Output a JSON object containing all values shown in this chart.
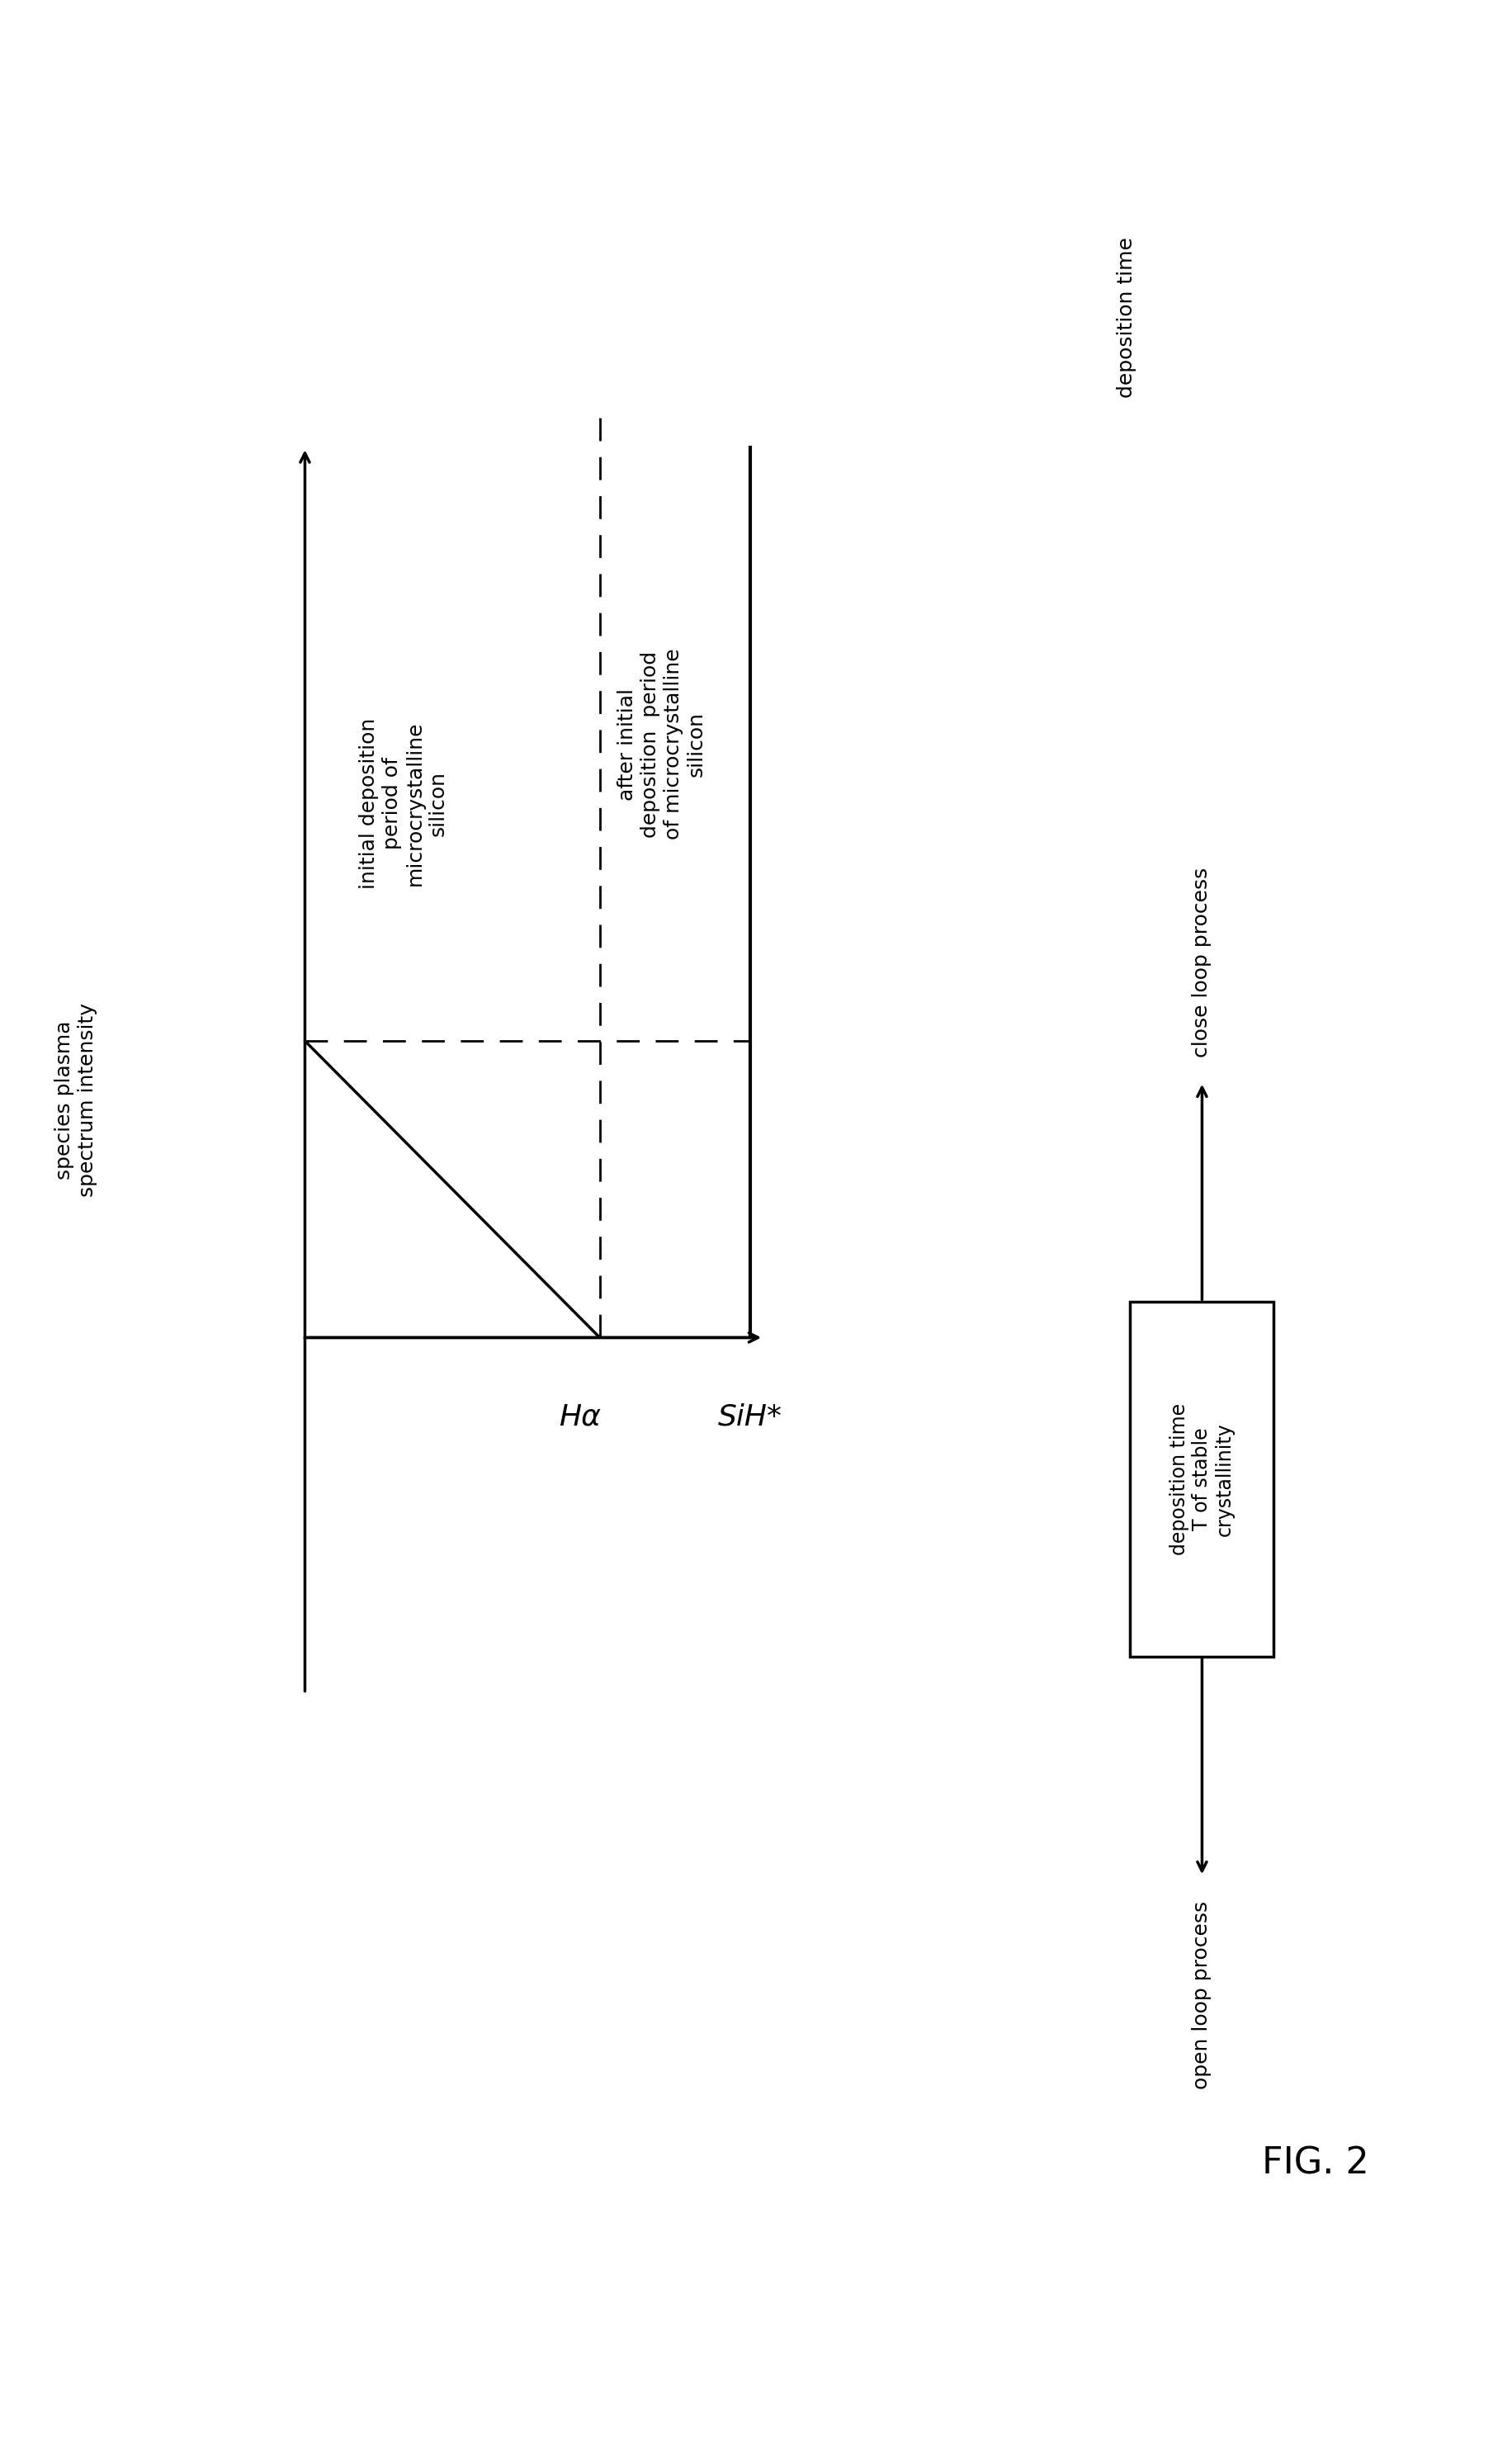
{
  "fig_width": 18.32,
  "fig_height": 29.62,
  "bg_color": "#ffffff",
  "line_color": "#000000",
  "font_size_large": 22,
  "font_size_medium": 18,
  "font_size_small": 16,
  "fig_label": "FIG. 2",
  "ylabel_text": "species plasma\nspectrum intensity",
  "xlabel_text": "deposition time",
  "label_Halpha": "Hα",
  "label_SiH": "SiH*",
  "text_initial": "initial deposition\nperiod of\nmicrocrystalline\nsilicon",
  "text_after": "after initial\ndeposition  period\nof microcrystalline\nsilicon",
  "text_box": "deposition time\nT of stable\ncrystallinity",
  "text_open_loop": "open loop process",
  "text_close_loop": "close loop process"
}
